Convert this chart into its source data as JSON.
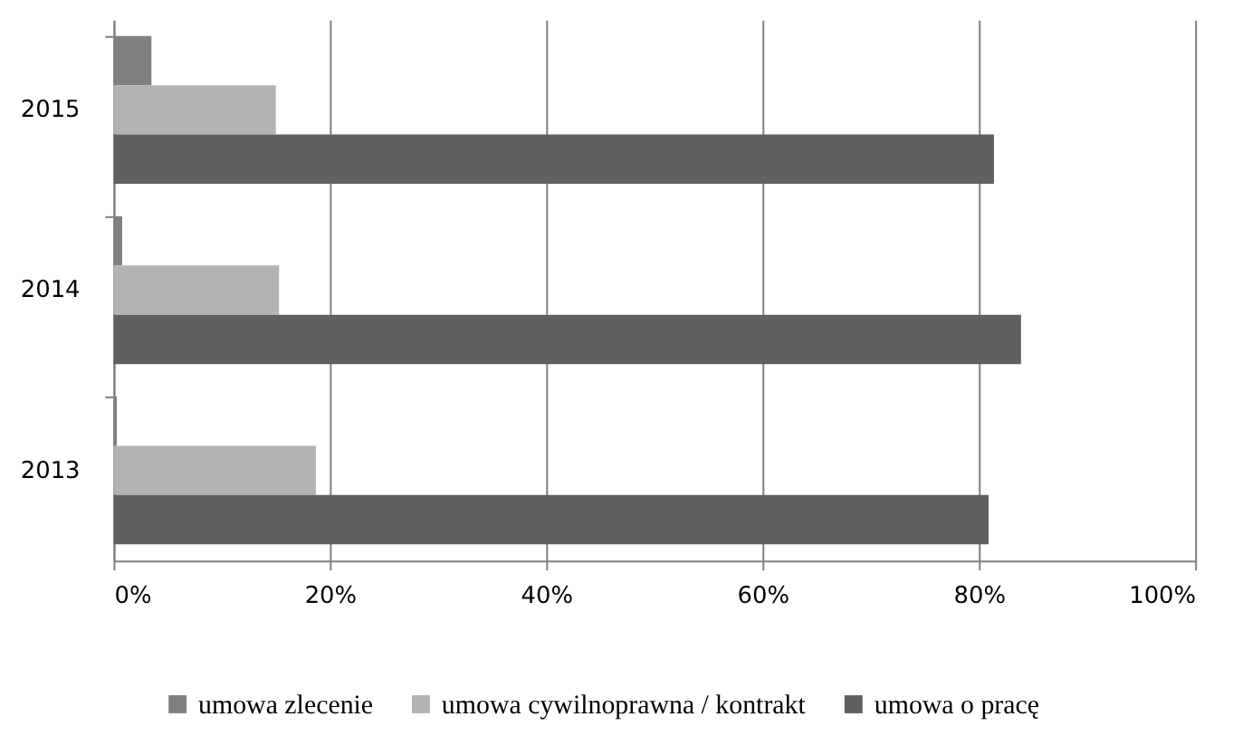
{
  "chart_data": {
    "type": "bar",
    "orientation": "horizontal",
    "categories": [
      "2015",
      "2014",
      "2013"
    ],
    "series": [
      {
        "name": "umowa zlecenie",
        "color": "#808080",
        "values": [
          3.5,
          0.8,
          0.3
        ]
      },
      {
        "name": "umowa cywilnoprawna / kontrakt",
        "color": "#b3b3b3",
        "values": [
          15.0,
          15.3,
          18.7
        ]
      },
      {
        "name": "umowa o pracę",
        "color": "#606060",
        "values": [
          81.4,
          83.9,
          80.9
        ]
      }
    ],
    "xlim": [
      0,
      100
    ],
    "xticks": [
      {
        "value": 0,
        "label": "0%"
      },
      {
        "value": 20,
        "label": "20%"
      },
      {
        "value": 40,
        "label": "40%"
      },
      {
        "value": 60,
        "label": "60%"
      },
      {
        "value": 80,
        "label": "80%"
      },
      {
        "value": 100,
        "label": "100%"
      }
    ],
    "grid": "x",
    "legend": "bottom"
  }
}
